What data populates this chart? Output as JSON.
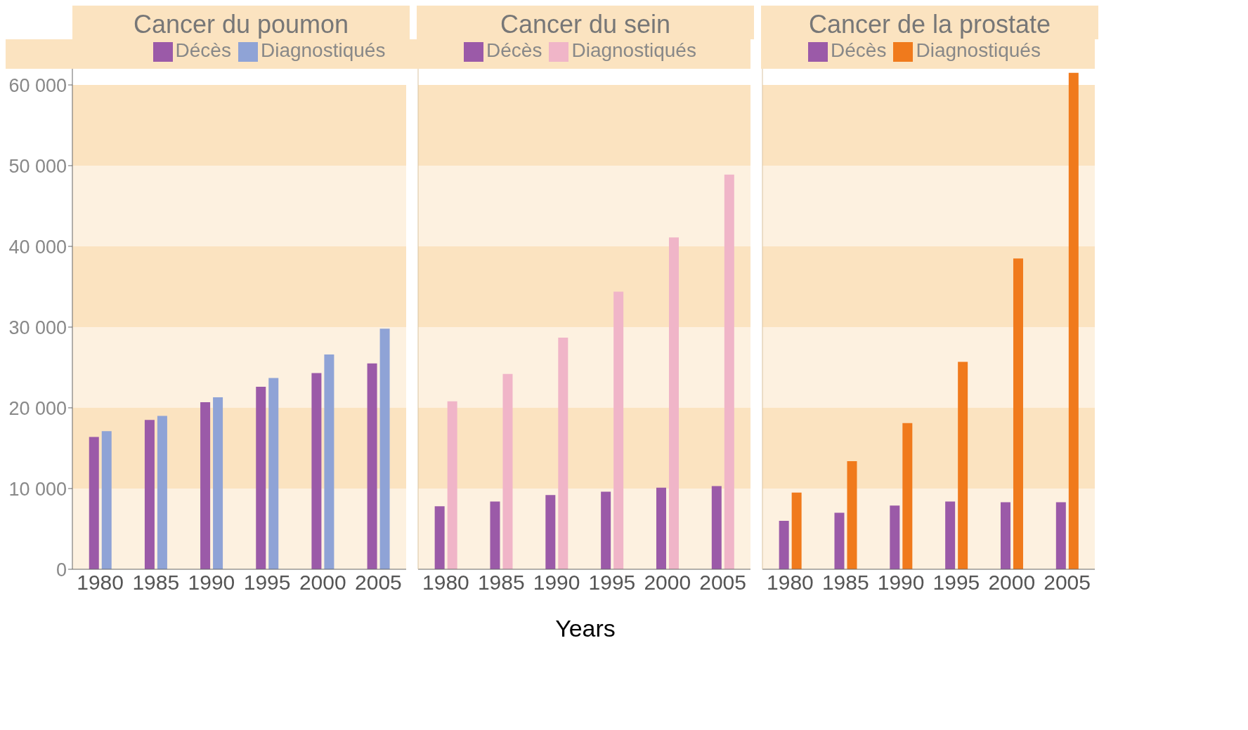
{
  "chart_data": [
    {
      "type": "bar",
      "title": "Cancer du poumon",
      "categories": [
        "1980",
        "1985",
        "1990",
        "1995",
        "2000",
        "2005"
      ],
      "series": [
        {
          "name": "Décès",
          "color": "#9b5aa8",
          "values": [
            16400,
            18500,
            20700,
            22600,
            24300,
            25500
          ]
        },
        {
          "name": "Diagnostiqués",
          "color": "#8fa3d6",
          "values": [
            17100,
            19000,
            21300,
            23700,
            26600,
            29800
          ]
        }
      ],
      "ylim": [
        0,
        62000
      ],
      "yticks": [
        {
          "value": 0,
          "label": "0"
        },
        {
          "value": 10000,
          "label": "10 000"
        },
        {
          "value": 20000,
          "label": "20 000"
        },
        {
          "value": 30000,
          "label": "30 000"
        },
        {
          "value": 40000,
          "label": "40 000"
        },
        {
          "value": 50000,
          "label": "50 000"
        },
        {
          "value": 60000,
          "label": "60 000"
        }
      ],
      "bands": [
        {
          "axis": "y",
          "from": 0,
          "to": 10000,
          "color": "#fdf1e0"
        },
        {
          "axis": "y",
          "from": 10000,
          "to": 20000,
          "color": "#fbe3c0"
        },
        {
          "axis": "y",
          "from": 20000,
          "to": 30000,
          "color": "#fdf1e0"
        },
        {
          "axis": "y",
          "from": 30000,
          "to": 40000,
          "color": "#fbe3c0"
        },
        {
          "axis": "y",
          "from": 40000,
          "to": 50000,
          "color": "#fdf1e0"
        },
        {
          "axis": "y",
          "from": 50000,
          "to": 60000,
          "color": "#fbe3c0"
        }
      ],
      "legend": "top",
      "grid": false
    },
    {
      "type": "bar",
      "title": "Cancer du sein",
      "xlabel": "Years",
      "categories": [
        "1980",
        "1985",
        "1990",
        "1995",
        "2000",
        "2005"
      ],
      "series": [
        {
          "name": "Décès",
          "color": "#9b5aa8",
          "values": [
            7800,
            8400,
            9200,
            9600,
            10100,
            10300
          ]
        },
        {
          "name": "Diagnostiqués",
          "color": "#f0b5c8",
          "values": [
            20800,
            24200,
            28700,
            34400,
            41100,
            48900
          ]
        }
      ],
      "ylim": [
        0,
        62000
      ],
      "bands": [
        {
          "axis": "y",
          "from": 0,
          "to": 10000,
          "color": "#fdf1e0"
        },
        {
          "axis": "y",
          "from": 10000,
          "to": 20000,
          "color": "#fbe3c0"
        },
        {
          "axis": "y",
          "from": 20000,
          "to": 30000,
          "color": "#fdf1e0"
        },
        {
          "axis": "y",
          "from": 30000,
          "to": 40000,
          "color": "#fbe3c0"
        },
        {
          "axis": "y",
          "from": 40000,
          "to": 50000,
          "color": "#fdf1e0"
        },
        {
          "axis": "y",
          "from": 50000,
          "to": 60000,
          "color": "#fbe3c0"
        }
      ],
      "legend": "top",
      "grid": false,
      "tick_labels": "x"
    },
    {
      "type": "bar",
      "title": "Cancer de la prostate",
      "categories": [
        "1980",
        "1985",
        "1990",
        "1995",
        "2000",
        "2005"
      ],
      "series": [
        {
          "name": "Décès",
          "color": "#9b5aa8",
          "values": [
            6000,
            7000,
            7900,
            8400,
            8300,
            8300
          ]
        },
        {
          "name": "Diagnostiqués",
          "color": "#f07a1c",
          "values": [
            9500,
            13400,
            18100,
            25700,
            38500,
            61500
          ]
        }
      ],
      "ylim": [
        0,
        62000
      ],
      "bands": [
        {
          "axis": "y",
          "from": 0,
          "to": 10000,
          "color": "#fdf1e0"
        },
        {
          "axis": "y",
          "from": 10000,
          "to": 20000,
          "color": "#fbe3c0"
        },
        {
          "axis": "y",
          "from": 20000,
          "to": 30000,
          "color": "#fdf1e0"
        },
        {
          "axis": "y",
          "from": 30000,
          "to": 40000,
          "color": "#fbe3c0"
        },
        {
          "axis": "y",
          "from": 40000,
          "to": 50000,
          "color": "#fdf1e0"
        },
        {
          "axis": "y",
          "from": 50000,
          "to": 60000,
          "color": "#fbe3c0"
        }
      ],
      "legend": "top",
      "grid": false,
      "tick_labels": "x"
    }
  ]
}
